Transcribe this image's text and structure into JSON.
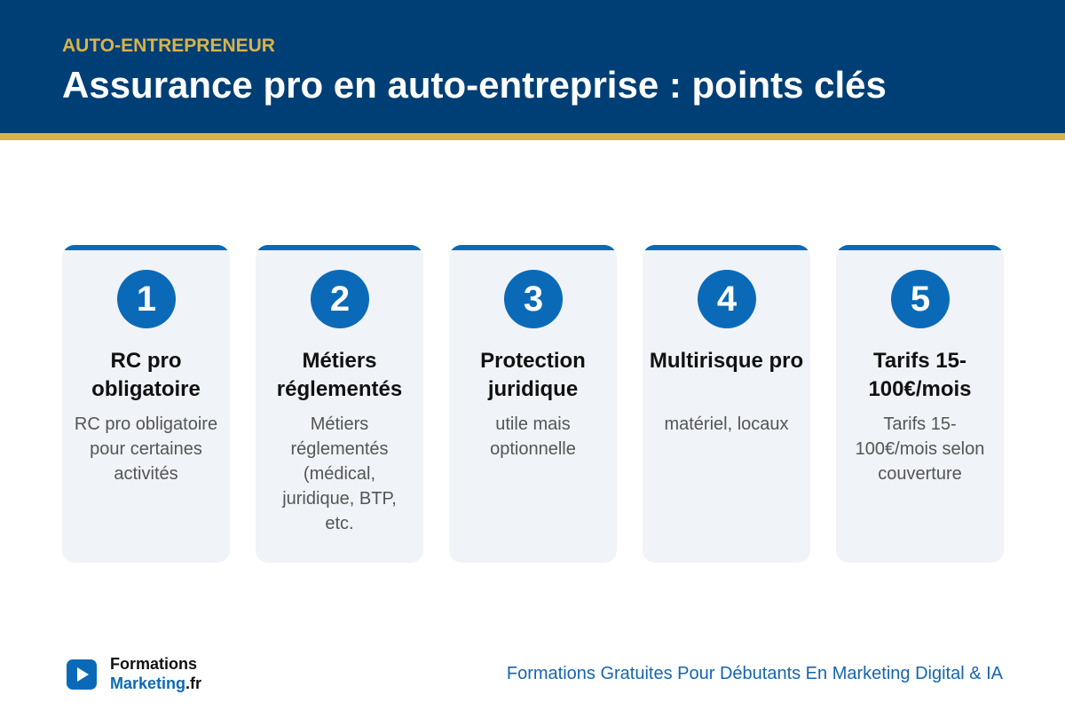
{
  "header": {
    "kicker": "AUTO-ENTREPRENEUR",
    "title": "Assurance pro en auto-entreprise : points clés"
  },
  "cards": [
    {
      "number": 1,
      "title": "RC pro obligatoire",
      "text": "RC pro obligatoire pour certaines activités"
    },
    {
      "number": 2,
      "title": "Métiers réglementés",
      "text": "Métiers réglementés (médical, juridique, BTP, etc."
    },
    {
      "number": 3,
      "title": "Protection juridique",
      "text": "utile mais optionnelle"
    },
    {
      "number": 4,
      "title": "Multirisque pro",
      "text": "matériel, locaux"
    },
    {
      "number": 5,
      "title": "Tarifs 15-100€/mois",
      "text": "Tarifs 15-100€/mois selon couverture"
    }
  ],
  "footer": {
    "logo_top": "Formations",
    "logo_main": "Marketing",
    "logo_suffix": ".fr",
    "tagline": "Formations Gratuites Pour Débutants En Marketing Digital & IA"
  }
}
